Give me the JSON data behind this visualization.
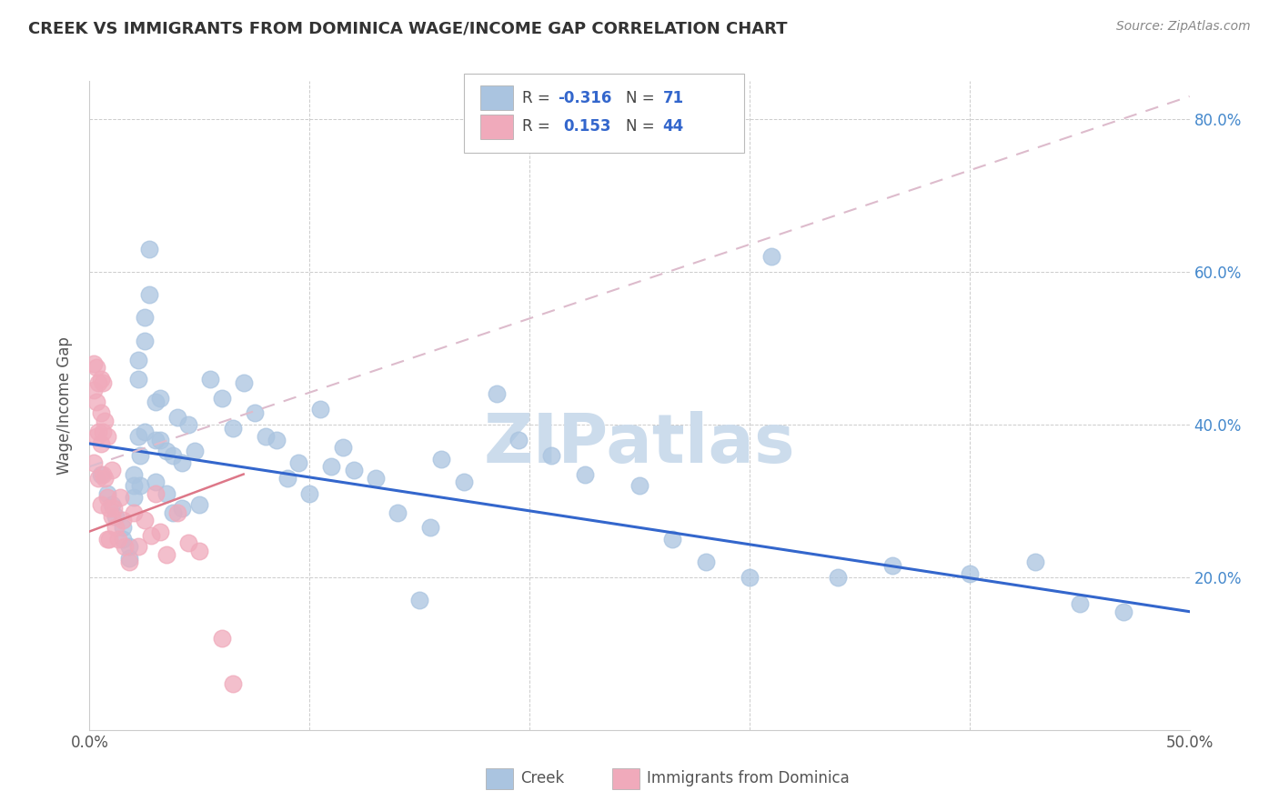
{
  "title": "CREEK VS IMMIGRANTS FROM DOMINICA WAGE/INCOME GAP CORRELATION CHART",
  "source": "Source: ZipAtlas.com",
  "ylabel": "Wage/Income Gap",
  "xlim": [
    0.0,
    0.5
  ],
  "ylim": [
    0.0,
    0.85
  ],
  "creek_color": "#aac4e0",
  "creek_edge_color": "#aac4e0",
  "dominica_color": "#f0aabb",
  "dominica_edge_color": "#f0aabb",
  "creek_line_color": "#3366cc",
  "dominica_line_color": "#dd7788",
  "dashed_line_color": "#ddbbcc",
  "creek_R": -0.316,
  "creek_N": 71,
  "dominica_R": 0.153,
  "dominica_N": 44,
  "watermark": "ZIPatlas",
  "watermark_color": "#ccdcec",
  "creek_line_x0": 0.0,
  "creek_line_y0": 0.375,
  "creek_line_x1": 0.5,
  "creek_line_y1": 0.155,
  "dominica_line_x0": 0.0,
  "dominica_line_y0": 0.26,
  "dominica_line_x1": 0.07,
  "dominica_line_y1": 0.335,
  "dashed_line_x0": 0.0,
  "dashed_line_y0": 0.345,
  "dashed_line_x1": 0.5,
  "dashed_line_y1": 0.83,
  "creek_scatter_x": [
    0.005,
    0.008,
    0.01,
    0.012,
    0.015,
    0.015,
    0.018,
    0.018,
    0.02,
    0.02,
    0.02,
    0.022,
    0.022,
    0.022,
    0.023,
    0.023,
    0.025,
    0.025,
    0.025,
    0.027,
    0.027,
    0.03,
    0.03,
    0.03,
    0.032,
    0.032,
    0.035,
    0.035,
    0.038,
    0.038,
    0.04,
    0.042,
    0.042,
    0.045,
    0.048,
    0.05,
    0.055,
    0.06,
    0.065,
    0.07,
    0.075,
    0.08,
    0.085,
    0.09,
    0.095,
    0.1,
    0.105,
    0.11,
    0.115,
    0.12,
    0.13,
    0.14,
    0.15,
    0.155,
    0.16,
    0.17,
    0.185,
    0.195,
    0.21,
    0.225,
    0.25,
    0.265,
    0.28,
    0.3,
    0.31,
    0.34,
    0.365,
    0.4,
    0.43,
    0.45,
    0.47
  ],
  "creek_scatter_y": [
    0.335,
    0.31,
    0.295,
    0.28,
    0.265,
    0.25,
    0.24,
    0.225,
    0.335,
    0.32,
    0.305,
    0.485,
    0.46,
    0.385,
    0.36,
    0.32,
    0.54,
    0.51,
    0.39,
    0.63,
    0.57,
    0.43,
    0.38,
    0.325,
    0.435,
    0.38,
    0.365,
    0.31,
    0.36,
    0.285,
    0.41,
    0.35,
    0.29,
    0.4,
    0.365,
    0.295,
    0.46,
    0.435,
    0.395,
    0.455,
    0.415,
    0.385,
    0.38,
    0.33,
    0.35,
    0.31,
    0.42,
    0.345,
    0.37,
    0.34,
    0.33,
    0.285,
    0.17,
    0.265,
    0.355,
    0.325,
    0.44,
    0.38,
    0.36,
    0.335,
    0.32,
    0.25,
    0.22,
    0.2,
    0.62,
    0.2,
    0.215,
    0.205,
    0.22,
    0.165,
    0.155
  ],
  "dominica_scatter_x": [
    0.002,
    0.002,
    0.002,
    0.003,
    0.003,
    0.003,
    0.004,
    0.004,
    0.004,
    0.005,
    0.005,
    0.005,
    0.005,
    0.006,
    0.006,
    0.006,
    0.007,
    0.007,
    0.008,
    0.008,
    0.008,
    0.009,
    0.009,
    0.01,
    0.01,
    0.011,
    0.012,
    0.013,
    0.014,
    0.015,
    0.016,
    0.018,
    0.02,
    0.022,
    0.025,
    0.028,
    0.03,
    0.032,
    0.035,
    0.04,
    0.045,
    0.05,
    0.06,
    0.065
  ],
  "dominica_scatter_y": [
    0.48,
    0.445,
    0.35,
    0.475,
    0.43,
    0.385,
    0.455,
    0.39,
    0.33,
    0.46,
    0.415,
    0.375,
    0.295,
    0.455,
    0.39,
    0.335,
    0.405,
    0.33,
    0.385,
    0.305,
    0.25,
    0.29,
    0.25,
    0.34,
    0.28,
    0.29,
    0.265,
    0.25,
    0.305,
    0.275,
    0.24,
    0.22,
    0.285,
    0.24,
    0.275,
    0.255,
    0.31,
    0.26,
    0.23,
    0.285,
    0.245,
    0.235,
    0.12,
    0.06
  ]
}
